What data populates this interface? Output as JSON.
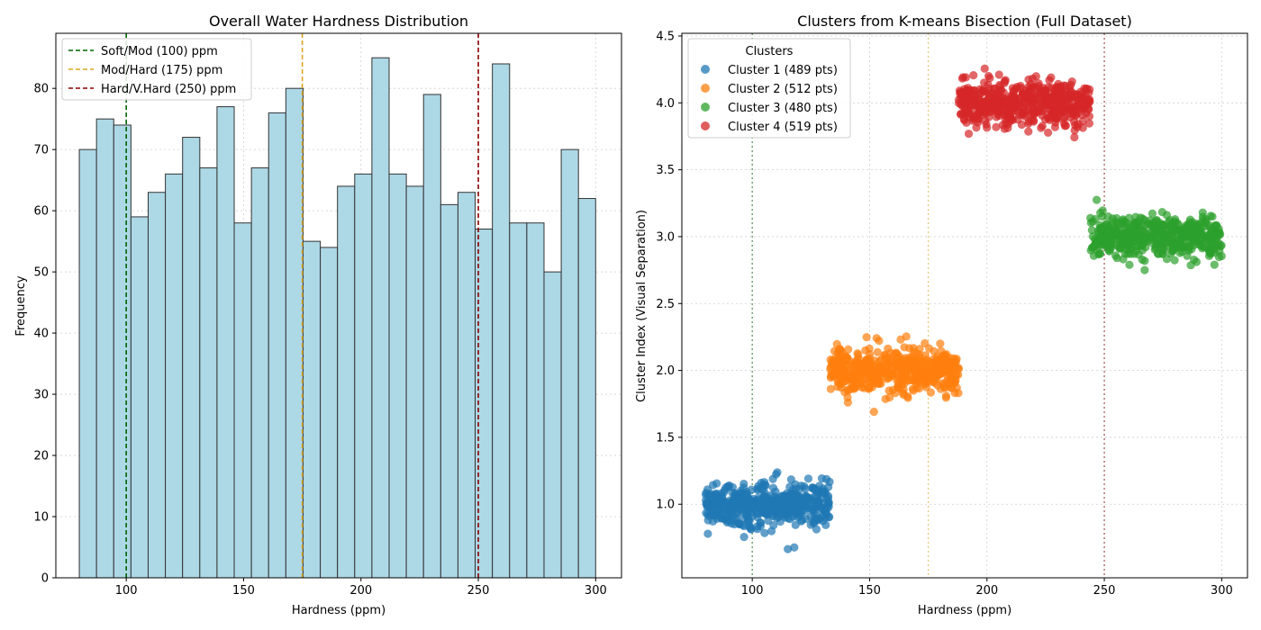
{
  "chart_data": [
    {
      "type": "bar",
      "title": "Overall Water Hardness Distribution",
      "xlabel": "Hardness (ppm)",
      "ylabel": "Frequency",
      "xlim": [
        70,
        311
      ],
      "ylim": [
        0,
        89
      ],
      "xticks": [
        100,
        150,
        200,
        250,
        300
      ],
      "yticks": [
        0,
        10,
        20,
        30,
        40,
        50,
        60,
        70,
        80
      ],
      "bin_start": 80,
      "bin_width": 7.333,
      "values": [
        70,
        75,
        74,
        59,
        63,
        66,
        72,
        67,
        77,
        58,
        67,
        76,
        80,
        55,
        54,
        64,
        66,
        85,
        66,
        64,
        79,
        61,
        63,
        57,
        84,
        58,
        58,
        50,
        70,
        62
      ],
      "bar_color": "#add8e6",
      "edge_color": "#333333",
      "grid": true,
      "thresholds": [
        {
          "label": "Soft/Mod (100) ppm",
          "x": 100,
          "color": "#006400"
        },
        {
          "label": "Mod/Hard (175) ppm",
          "x": 175,
          "color": "#daa520"
        },
        {
          "label": "Hard/V.Hard (250) ppm",
          "x": 250,
          "color": "#8b0000"
        }
      ],
      "legend_position": "top-left"
    },
    {
      "type": "scatter",
      "title": "Clusters from K-means Bisection (Full Dataset)",
      "xlabel": "Hardness (ppm)",
      "ylabel": "Cluster Index (Visual Separation)",
      "xlim": [
        70,
        311
      ],
      "ylim": [
        0.45,
        4.52
      ],
      "xticks": [
        100,
        150,
        200,
        250,
        300
      ],
      "yticks": [
        1.0,
        1.5,
        2.0,
        2.5,
        3.0,
        3.5,
        4.0,
        4.5
      ],
      "ytick_labels": [
        "1.0",
        "1.5",
        "2.0",
        "2.5",
        "3.0",
        "3.5",
        "4.0",
        "4.5"
      ],
      "legend_title": "Clusters",
      "legend_position": "top-left",
      "grid": true,
      "series": [
        {
          "name": "Cluster 1 (489 pts)",
          "count": 489,
          "x_range": [
            80,
            133
          ],
          "y_center": 1.0,
          "color": "#1f77b4"
        },
        {
          "name": "Cluster 2 (512 pts)",
          "count": 512,
          "x_range": [
            133,
            188
          ],
          "y_center": 2.0,
          "color": "#ff7f0e"
        },
        {
          "name": "Cluster 3 (480 pts)",
          "count": 480,
          "x_range": [
            244,
            300
          ],
          "y_center": 3.0,
          "color": "#2ca02c"
        },
        {
          "name": "Cluster 4 (519 pts)",
          "count": 519,
          "x_range": [
            188,
            244
          ],
          "y_center": 4.0,
          "color": "#d62728"
        }
      ],
      "thresholds": [
        {
          "x": 100,
          "color": "#006400"
        },
        {
          "x": 175,
          "color": "#daa520"
        },
        {
          "x": 250,
          "color": "#8b0000"
        }
      ]
    }
  ]
}
